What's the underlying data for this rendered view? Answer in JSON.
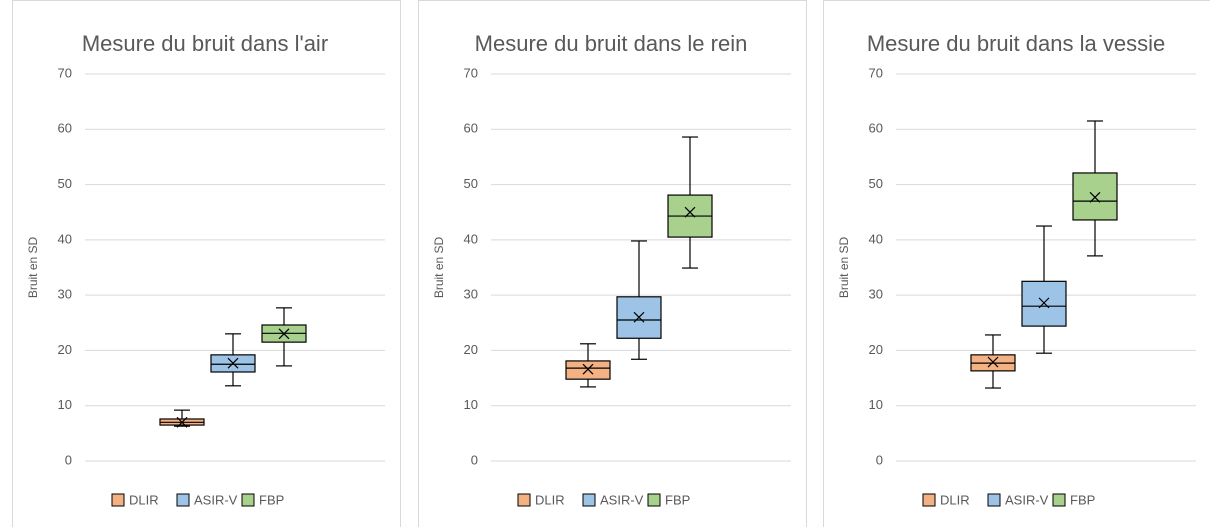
{
  "chart_data": [
    {
      "type": "box",
      "title": "Mesure du bruit dans l'air",
      "y_label": "Bruit en SD",
      "ylim": [
        0,
        70
      ],
      "yticks": [
        0,
        10,
        20,
        30,
        40,
        50,
        60,
        70
      ],
      "grid": true,
      "legend": "bottom",
      "series": [
        {
          "name": "DLIR",
          "color": "#f4b183",
          "min": 6.3,
          "q1": 6.5,
          "median": 7.0,
          "q3": 7.6,
          "max": 9.2,
          "mean": 7.0
        },
        {
          "name": "ASIR-V",
          "color": "#9dc3e6",
          "min": 13.6,
          "q1": 16.1,
          "median": 17.5,
          "q3": 19.2,
          "max": 23.0,
          "mean": 17.7
        },
        {
          "name": "FBP",
          "color": "#a9d18e",
          "min": 17.2,
          "q1": 21.5,
          "median": 23.1,
          "q3": 24.6,
          "max": 27.7,
          "mean": 23.0
        }
      ]
    },
    {
      "type": "box",
      "title": "Mesure du bruit dans le rein",
      "y_label": "Bruit en SD",
      "ylim": [
        0,
        70
      ],
      "yticks": [
        0,
        10,
        20,
        30,
        40,
        50,
        60,
        70
      ],
      "grid": true,
      "legend": "bottom",
      "series": [
        {
          "name": "DLIR",
          "color": "#f4b183",
          "min": 13.4,
          "q1": 14.8,
          "median": 16.8,
          "q3": 18.1,
          "max": 21.2,
          "mean": 16.6
        },
        {
          "name": "ASIR-V",
          "color": "#9dc3e6",
          "min": 18.4,
          "q1": 22.2,
          "median": 25.5,
          "q3": 29.7,
          "max": 39.8,
          "mean": 26.0
        },
        {
          "name": "FBP",
          "color": "#a9d18e",
          "min": 34.9,
          "q1": 40.5,
          "median": 44.3,
          "q3": 48.1,
          "max": 58.6,
          "mean": 45.0
        }
      ]
    },
    {
      "type": "box",
      "title": "Mesure du bruit dans la vessie",
      "y_label": "Bruit en SD",
      "ylim": [
        0,
        70
      ],
      "yticks": [
        0,
        10,
        20,
        30,
        40,
        50,
        60,
        70
      ],
      "grid": true,
      "legend": "bottom",
      "series": [
        {
          "name": "DLIR",
          "color": "#f4b183",
          "min": 13.2,
          "q1": 16.3,
          "median": 17.7,
          "q3": 19.2,
          "max": 22.8,
          "mean": 17.9
        },
        {
          "name": "ASIR-V",
          "color": "#9dc3e6",
          "min": 19.5,
          "q1": 24.4,
          "median": 28.0,
          "q3": 32.5,
          "max": 42.5,
          "mean": 28.6
        },
        {
          "name": "FBP",
          "color": "#a9d18e",
          "min": 37.1,
          "q1": 43.6,
          "median": 47.0,
          "q3": 52.1,
          "max": 61.5,
          "mean": 47.7
        }
      ]
    }
  ]
}
